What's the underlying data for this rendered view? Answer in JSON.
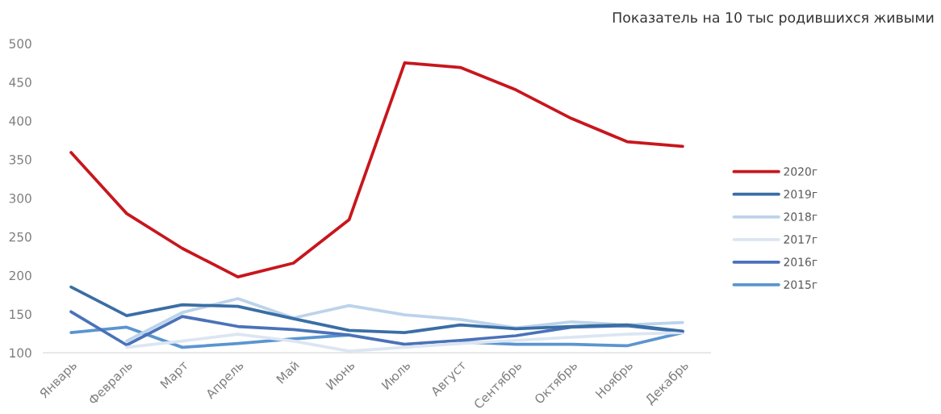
{
  "chart_data": {
    "type": "line",
    "title": "Показатель на 10 тыс родившихся живыми",
    "categories": [
      "Январь",
      "Февраль",
      "Март",
      "Апрель",
      "Май",
      "Июнь",
      "Июль",
      "Август",
      "Сентябрь",
      "Октябрь",
      "Ноябрь",
      "Декабрь"
    ],
    "series": [
      {
        "name": "2020г",
        "color": "#c8161d",
        "values": [
          359,
          280,
          235,
          198,
          216,
          272,
          475,
          469,
          440,
          403,
          373,
          367
        ]
      },
      {
        "name": "2019г",
        "color": "#3a6ea5",
        "values": [
          185,
          148,
          162,
          160,
          144,
          129,
          126,
          136,
          131,
          134,
          136,
          128
        ]
      },
      {
        "name": "2018г",
        "color": "#bcd3ea",
        "values": [
          null,
          115,
          152,
          170,
          145,
          161,
          149,
          143,
          132,
          140,
          136,
          139
        ]
      },
      {
        "name": "2017г",
        "color": "#dce6f2",
        "values": [
          null,
          107,
          115,
          124,
          115,
          102,
          107,
          112,
          116,
          120,
          124,
          126
        ]
      },
      {
        "name": "2016г",
        "color": "#4a72b8",
        "values": [
          153,
          110,
          147,
          134,
          130,
          123,
          111,
          116,
          122,
          133,
          135,
          127
        ]
      },
      {
        "name": "2015г",
        "color": "#5b95cf",
        "values": [
          126,
          133,
          107,
          112,
          118,
          123,
          null,
          114,
          111,
          111,
          109,
          126
        ]
      }
    ],
    "ylim": [
      100,
      500
    ],
    "yticks": [
      100,
      150,
      200,
      250,
      300,
      350,
      400,
      450,
      500
    ],
    "legend": "right",
    "line_style": "solid"
  }
}
